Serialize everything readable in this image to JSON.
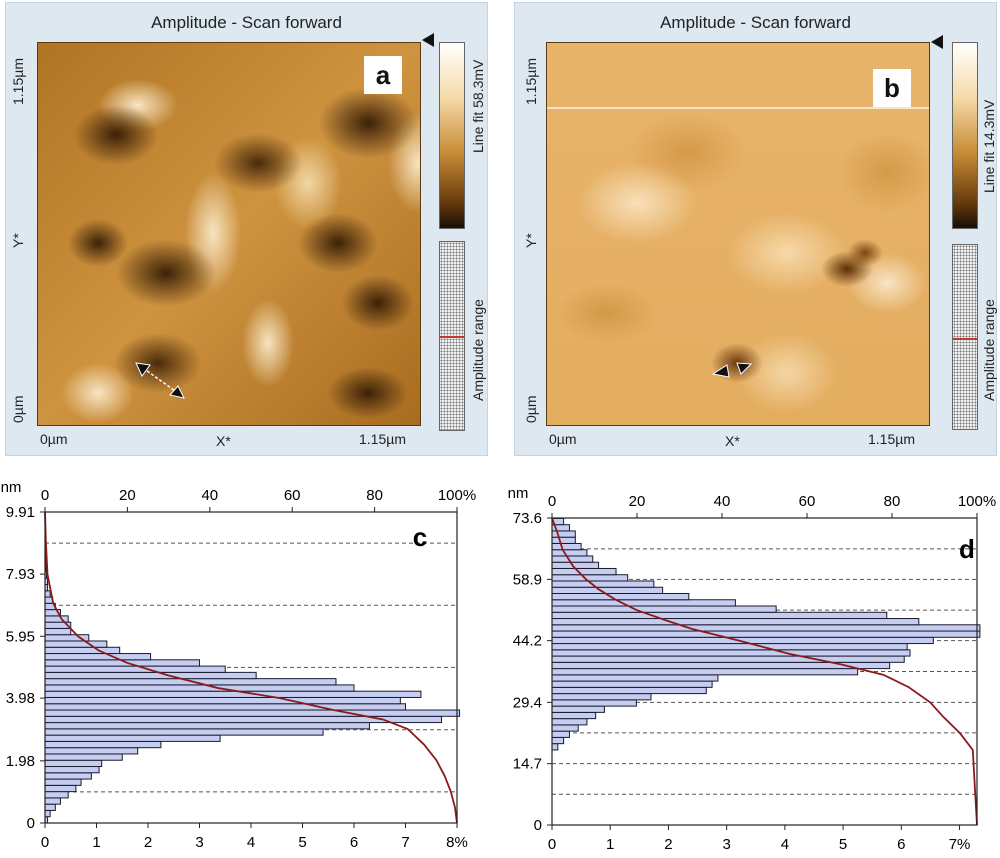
{
  "panels": [
    {
      "id": "a",
      "title": "Amplitude - Scan forward",
      "label": "a",
      "colorbar_label": "Line fit 58.3mV",
      "range_label": "Amplitude range",
      "y_axis_label": "Y*",
      "x_axis_label": "X*",
      "y_top": "1.15µm",
      "y_bottom": "0µm",
      "x_left": "0µm",
      "x_right": "1.15µm"
    },
    {
      "id": "b",
      "title": "Amplitude - Scan forward",
      "label": "b",
      "colorbar_label": "Line fit 14.3mV",
      "range_label": "Amplitude range",
      "y_axis_label": "Y*",
      "x_axis_label": "X*",
      "y_top": "1.15µm",
      "y_bottom": "0µm",
      "x_left": "0µm",
      "x_right": "1.15µm"
    }
  ],
  "colors": {
    "afm_dark": "#3b2108",
    "afm_mid": "#c0842c",
    "afm_light": "#f7e4c2",
    "panel_bg": "#dde8f1",
    "bar_fill": "#c5cdf0",
    "bar_stroke": "#1a1a2e",
    "cumulative_line": "#8b1a1a",
    "red_marker": "#c0392b"
  },
  "chart_data": [
    {
      "type": "bar",
      "orientation": "horizontal",
      "label": "c",
      "y_unit": "nm",
      "y_ticks": [
        "0",
        "1.98",
        "3.98",
        "5.95",
        "7.93",
        "9.91"
      ],
      "ylim": [
        0,
        9.91
      ],
      "x_bottom_ticks": [
        "0",
        "1",
        "2",
        "3",
        "4",
        "5",
        "6",
        "7",
        "8%"
      ],
      "x_bottom_lim": [
        0,
        8
      ],
      "x_top_ticks": [
        "0",
        "20",
        "40",
        "60",
        "80",
        "100%"
      ],
      "x_top_lim": [
        0,
        100
      ],
      "bin_width": 0.2,
      "bins_nm": [
        0.1,
        0.3,
        0.5,
        0.7,
        0.9,
        1.1,
        1.3,
        1.5,
        1.7,
        1.9,
        2.1,
        2.3,
        2.5,
        2.7,
        2.9,
        3.1,
        3.3,
        3.5,
        3.7,
        3.9,
        4.1,
        4.3,
        4.5,
        4.7,
        4.9,
        5.1,
        5.3,
        5.5,
        5.7,
        5.9,
        6.1,
        6.3,
        6.5,
        6.7,
        6.9,
        7.1,
        7.3,
        7.5,
        7.7,
        7.9,
        8.1,
        8.3,
        8.5,
        8.7,
        8.9,
        9.1,
        9.3,
        9.5,
        9.7
      ],
      "values_pct": [
        0.05,
        0.1,
        0.2,
        0.3,
        0.45,
        0.6,
        0.7,
        0.9,
        1.05,
        1.1,
        1.5,
        1.8,
        2.25,
        3.4,
        5.4,
        6.3,
        7.7,
        8.05,
        7.0,
        6.9,
        7.3,
        6.0,
        5.65,
        4.1,
        3.5,
        3.0,
        2.05,
        1.45,
        1.2,
        0.85,
        0.5,
        0.5,
        0.45,
        0.3,
        0.2,
        0.15,
        0.1,
        0.05,
        0.05,
        0.03,
        0.02,
        0.02,
        0.01,
        0.01,
        0.01,
        0.01,
        0.0,
        0.0,
        0.0
      ],
      "cumulative_points": [
        [
          0,
          100
        ],
        [
          0.5,
          99.5
        ],
        [
          1.0,
          98.5
        ],
        [
          1.5,
          97
        ],
        [
          2.0,
          95
        ],
        [
          2.5,
          92
        ],
        [
          3.0,
          88
        ],
        [
          3.3,
          82
        ],
        [
          3.6,
          70
        ],
        [
          3.98,
          57
        ],
        [
          4.3,
          42
        ],
        [
          4.7,
          30
        ],
        [
          5.1,
          20
        ],
        [
          5.5,
          13
        ],
        [
          5.95,
          8
        ],
        [
          6.5,
          4
        ],
        [
          7.0,
          2
        ],
        [
          7.93,
          0.6
        ],
        [
          9.0,
          0.2
        ],
        [
          9.91,
          0
        ]
      ],
      "dashed_grid_nm": [
        0.99,
        2.97,
        4.96,
        6.94,
        8.92
      ]
    },
    {
      "type": "bar",
      "orientation": "horizontal",
      "label": "d",
      "y_unit": "nm",
      "y_ticks": [
        "0",
        "14.7",
        "29.4",
        "44.2",
        "58.9",
        "73.6"
      ],
      "ylim": [
        0,
        73.6
      ],
      "x_bottom_ticks": [
        "0",
        "1",
        "2",
        "3",
        "4",
        "5",
        "6",
        "7%"
      ],
      "x_bottom_lim": [
        0,
        7.3
      ],
      "x_top_ticks": [
        "0",
        "20",
        "40",
        "60",
        "80",
        "100%"
      ],
      "x_top_lim": [
        0,
        100
      ],
      "bin_width": 1.5,
      "bins_nm": [
        18.75,
        20.25,
        21.75,
        23.25,
        24.75,
        26.25,
        27.75,
        29.25,
        30.75,
        32.25,
        33.75,
        35.25,
        36.75,
        38.25,
        39.75,
        41.25,
        42.75,
        44.25,
        45.75,
        47.25,
        48.75,
        50.25,
        51.75,
        53.25,
        54.75,
        56.25,
        57.75,
        59.25,
        60.75,
        62.25,
        63.75,
        65.25,
        66.75,
        68.25,
        69.75,
        71.25,
        72.75
      ],
      "values_pct": [
        0.1,
        0.2,
        0.3,
        0.45,
        0.6,
        0.75,
        0.9,
        1.45,
        1.7,
        2.65,
        2.75,
        2.85,
        5.25,
        5.8,
        6.05,
        6.15,
        6.1,
        6.55,
        7.35,
        7.35,
        6.3,
        5.75,
        3.85,
        3.15,
        2.35,
        1.9,
        1.75,
        1.3,
        1.1,
        0.8,
        0.7,
        0.6,
        0.5,
        0.4,
        0.4,
        0.3,
        0.2
      ],
      "cumulative_points": [
        [
          0,
          100
        ],
        [
          18,
          99
        ],
        [
          22,
          96
        ],
        [
          26,
          92
        ],
        [
          29.4,
          89
        ],
        [
          33,
          84
        ],
        [
          36,
          78
        ],
        [
          38.5,
          68
        ],
        [
          41,
          56
        ],
        [
          44.2,
          44
        ],
        [
          47,
          33
        ],
        [
          49,
          27
        ],
        [
          51.5,
          20
        ],
        [
          54,
          15
        ],
        [
          56.5,
          11
        ],
        [
          58.9,
          8
        ],
        [
          62,
          5
        ],
        [
          66,
          2.5
        ],
        [
          70,
          1.3
        ],
        [
          73.6,
          0
        ]
      ],
      "dashed_grid_nm": [
        7.36,
        14.7,
        22.1,
        29.4,
        36.8,
        44.2,
        51.5,
        58.9,
        66.2
      ]
    }
  ]
}
